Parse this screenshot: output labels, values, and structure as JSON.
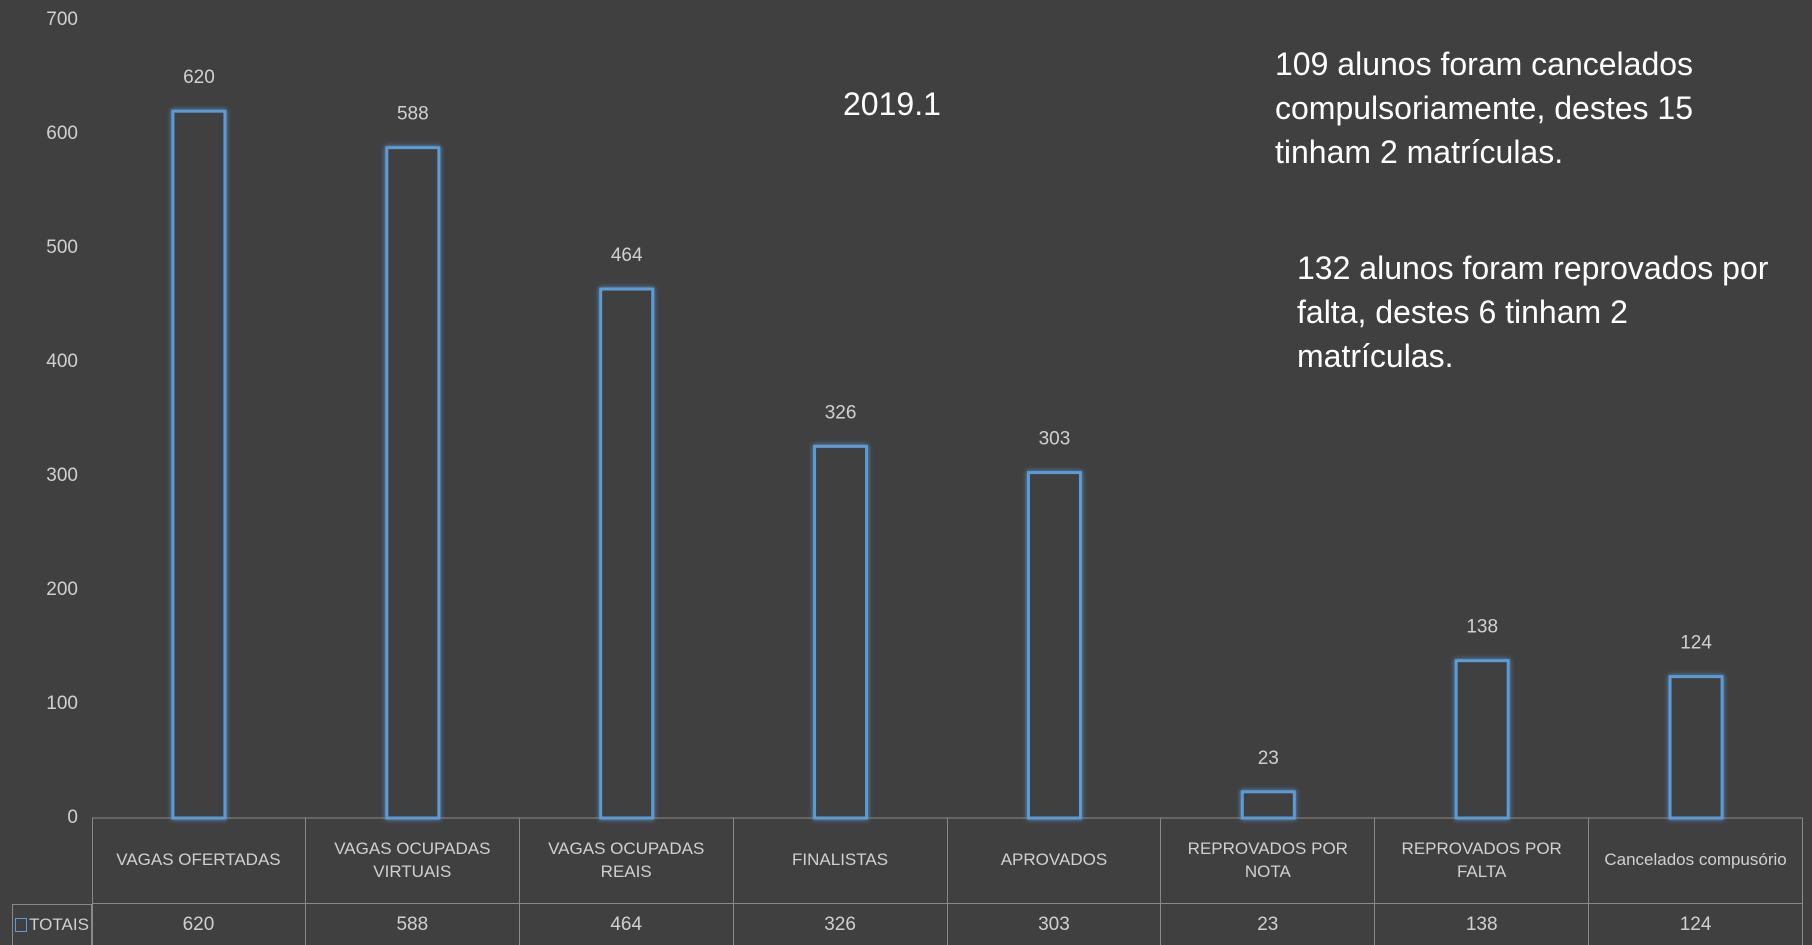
{
  "chart_data": {
    "type": "bar",
    "title": "2019.1",
    "annotations": [
      "109  alunos foram cancelados compulsoriamente, destes 15 tinham 2 matrículas.",
      "132  alunos foram reprovados por falta, destes 6 tinham 2 matrículas."
    ],
    "categories": [
      "VAGAS OFERTADAS",
      "VAGAS OCUPADAS VIRTUAIS",
      "VAGAS OCUPADAS REAIS",
      "FINALISTAS",
      "APROVADOS",
      "REPROVADOS POR NOTA",
      "REPROVADOS POR FALTA",
      "Cancelados compusório"
    ],
    "series": [
      {
        "name": "TOTAIS",
        "color": "#5b9bd5",
        "values": [
          620,
          588,
          464,
          326,
          303,
          23,
          138,
          124
        ]
      }
    ],
    "ylim": [
      0,
      700
    ],
    "yticks": [
      0,
      100,
      200,
      300,
      400,
      500,
      600,
      700
    ],
    "grid": false
  }
}
